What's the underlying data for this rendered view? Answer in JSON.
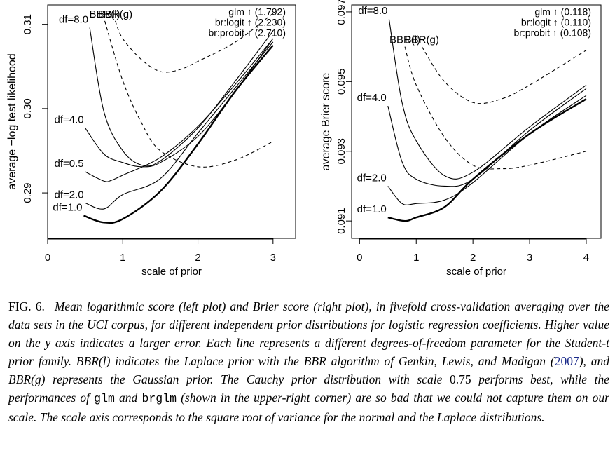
{
  "chart_data": [
    {
      "type": "line",
      "xlabel": "scale of prior",
      "ylabel": "average −log test likelihood",
      "xlim": [
        0,
        3.3
      ],
      "ylim": [
        0.2846,
        0.3123
      ],
      "xticks": [
        0,
        1,
        2,
        3
      ],
      "yticks": [
        0.29,
        {
          "value": 0.3,
          "label": "0.30"
        },
        0.31
      ],
      "series": [
        {
          "name": "df=8.0",
          "color": "#000000",
          "dashed": false,
          "thick": false,
          "x": [
            0.56,
            0.75,
            1,
            1.25,
            1.5,
            2,
            2.5,
            3
          ],
          "values": [
            0.3096,
            0.2996,
            0.295,
            0.2933,
            0.2938,
            0.2977,
            0.3033,
            0.3092
          ]
        },
        {
          "name": "df=4.0",
          "color": "#000000",
          "dashed": false,
          "thick": false,
          "x": [
            0.5,
            0.75,
            1,
            1.25,
            1.5,
            2,
            2.5,
            3
          ],
          "values": [
            0.2977,
            0.2946,
            0.2936,
            0.2931,
            0.2936,
            0.2967,
            0.3021,
            0.3083
          ]
        },
        {
          "name": "df=0.5",
          "color": "#000000",
          "dashed": false,
          "thick": false,
          "x": [
            0.5,
            0.75,
            0.85,
            1,
            1.5,
            2,
            2.5,
            3
          ],
          "values": [
            0.2925,
            0.2914,
            0.2915,
            0.2921,
            0.2942,
            0.2979,
            0.3029,
            0.3083
          ]
        },
        {
          "name": "df=2.0",
          "color": "#000000",
          "dashed": false,
          "thick": false,
          "x": [
            0.5,
            0.75,
            1,
            1.5,
            2,
            2.5,
            3
          ],
          "values": [
            0.2888,
            0.2881,
            0.2898,
            0.2917,
            0.2971,
            0.3025,
            0.3079
          ]
        },
        {
          "name": "df=1.0",
          "color": "#000000",
          "dashed": false,
          "thick": true,
          "x": [
            0.48,
            0.74,
            1,
            1.5,
            2,
            2.5,
            3
          ],
          "values": [
            0.2873,
            0.2865,
            0.2869,
            0.2902,
            0.2958,
            0.3021,
            0.3075
          ]
        },
        {
          "name": "BBR(l)",
          "color": "#000000",
          "dashed": true,
          "thick": false,
          "x": [
            0.76,
            1,
            1.25,
            1.5,
            2,
            2.5,
            3
          ],
          "values": [
            0.3104,
            0.3033,
            0.2983,
            0.295,
            0.2931,
            0.2939,
            0.2961
          ]
        },
        {
          "name": "BBR(g)",
          "color": "#000000",
          "dashed": true,
          "thick": false,
          "x": [
            0.9,
            1,
            1.25,
            1.5,
            1.75,
            2,
            2.5,
            3
          ],
          "values": [
            0.3104,
            0.3083,
            0.3058,
            0.3044,
            0.3046,
            0.3056,
            0.3079,
            0.3113
          ]
        }
      ],
      "annotations": [
        "glm ↑ (1.792)",
        "br:logit ↑ (2.230)",
        "br:probit ↑ (2.710)"
      ]
    },
    {
      "type": "line",
      "xlabel": "scale of prior",
      "ylabel": "average Brier score",
      "xlim": [
        -0.14,
        4.26
      ],
      "ylim": [
        0.0905,
        0.0972
      ],
      "xticks": [
        0,
        1,
        2,
        3,
        4
      ],
      "yticks": [
        0.091,
        0.093,
        0.095,
        0.097
      ],
      "series": [
        {
          "name": "df=8.0",
          "color": "#000000",
          "dashed": false,
          "thick": false,
          "x": [
            0.52,
            0.75,
            1,
            1.5,
            2,
            3,
            4
          ],
          "values": [
            0.0968,
            0.0944,
            0.0933,
            0.0923,
            0.0924,
            0.0937,
            0.0949
          ]
        },
        {
          "name": "df=4.0",
          "color": "#000000",
          "dashed": false,
          "thick": false,
          "x": [
            0.5,
            0.75,
            1,
            1.5,
            2,
            3,
            4
          ],
          "values": [
            0.0943,
            0.0927,
            0.0922,
            0.092,
            0.0922,
            0.0936,
            0.0948
          ]
        },
        {
          "name": "df=2.0",
          "color": "#000000",
          "dashed": false,
          "thick": false,
          "x": [
            0.5,
            0.75,
            1,
            1.5,
            2,
            3,
            4
          ],
          "values": [
            0.092,
            0.0915,
            0.0915,
            0.0916,
            0.0921,
            0.0935,
            0.0946
          ]
        },
        {
          "name": "df=1.0",
          "color": "#000000",
          "dashed": false,
          "thick": true,
          "x": [
            0.5,
            0.8,
            1,
            1.5,
            2,
            3,
            4
          ],
          "values": [
            0.0911,
            0.091,
            0.0911,
            0.0914,
            0.0922,
            0.0935,
            0.0945
          ]
        },
        {
          "name": "BBR(l)",
          "color": "#000000",
          "dashed": true,
          "thick": false,
          "x": [
            0.8,
            1,
            1.5,
            2,
            2.5,
            3,
            4
          ],
          "values": [
            0.096,
            0.0949,
            0.0934,
            0.0926,
            0.0925,
            0.0926,
            0.093
          ]
        },
        {
          "name": "BBR(g)",
          "color": "#000000",
          "dashed": true,
          "thick": false,
          "x": [
            1.1,
            1.5,
            2,
            2.5,
            3,
            4
          ],
          "values": [
            0.096,
            0.095,
            0.0944,
            0.0945,
            0.0949,
            0.0959
          ]
        }
      ],
      "annotations": [
        "glm ↑ (0.118)",
        "br:logit ↑ (0.110)",
        "br:probit ↑ (0.108)"
      ]
    }
  ],
  "caption": {
    "label": "FIG. 6.",
    "segments": [
      "Mean logarithmic score (left plot) and Brier score (right plot), in fivefold cross-validation averaging over the data sets in the UCI corpus, for different independent prior distributions for logistic regression coefficients. Higher value on the y axis indicates a larger error. Each line represents a different degrees-of-freedom parameter for the Student-t prior family. BBR(l) indicates the Laplace prior with the BBR algorithm of Genkin, Lewis, and Madigan (",
      "2007",
      "), and BBR(g) represents the Gaussian prior. The Cauchy prior distribution with scale ",
      "0.75",
      " performs best, while the performances of ",
      "glm",
      " and ",
      "brglm",
      " (shown in the upper-right corner) are so bad that we could not capture them on our scale. The scale axis corresponds to the square root of variance for the normal and the Laplace distributions."
    ]
  }
}
